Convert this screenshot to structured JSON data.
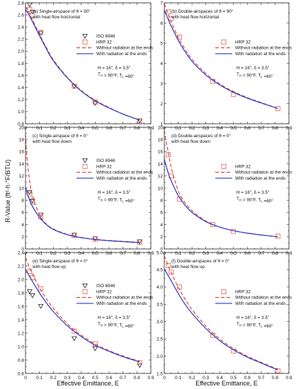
{
  "figure": {
    "y_axis_title": "R-Value (ft²·h·°F/BTU)",
    "x_axis_title": "Effective Emittance, E"
  },
  "colors": {
    "iso": "#222222",
    "hrp": "#e06050",
    "without_radiation": "#e03a2a",
    "with_radiation": "#2838c8"
  },
  "chart_data": [
    {
      "type": "line",
      "panel": "a",
      "annotation": [
        "(a) Single-airspace of θ = 90°",
        "with heat flow horizontal"
      ],
      "conditions": [
        "H = 16\", δ = 3.5\"",
        "T_H = 90°F, T_L =60°"
      ],
      "xlim": [
        0,
        0.9
      ],
      "ylim": [
        0.8,
        2.8
      ],
      "xticks": [
        "0",
        "0.1",
        "0.2",
        "0.3",
        "0.4",
        "0.5",
        "0.6",
        "0.7",
        "0.8",
        "0.9"
      ],
      "yticks": [
        "0.8",
        "1.0",
        "1.2",
        "1.4",
        "1.6",
        "1.8",
        "2.0",
        "2.2",
        "2.4",
        "2.6",
        "2.8"
      ],
      "legend": [
        "ISO 6946",
        "HRP 32",
        "Without radiation at the ends",
        "With radiation at the ends"
      ],
      "series": [
        {
          "name": "ISO 6946",
          "marker": "triangle",
          "x": [
            0.03,
            0.05,
            0.11,
            0.35,
            0.5,
            0.82
          ],
          "y": [
            2.77,
            2.65,
            2.3,
            1.42,
            1.14,
            0.85
          ]
        },
        {
          "name": "HRP 32",
          "marker": "square",
          "x": [
            0.03,
            0.05,
            0.11,
            0.35,
            0.5,
            0.82
          ],
          "y": [
            2.69,
            2.59,
            2.31,
            1.42,
            1.16,
            0.85
          ]
        },
        {
          "name": "Without radiation at the ends",
          "style": "dashed",
          "x": [
            0.0,
            0.03,
            0.05,
            0.1,
            0.15,
            0.2,
            0.3,
            0.4,
            0.5,
            0.6,
            0.7,
            0.82
          ],
          "y": [
            2.74,
            2.62,
            2.52,
            2.28,
            2.06,
            1.86,
            1.57,
            1.35,
            1.19,
            1.07,
            0.96,
            0.86
          ]
        },
        {
          "name": "With radiation at the ends",
          "style": "solid",
          "x": [
            0.0,
            0.03,
            0.05,
            0.1,
            0.15,
            0.2,
            0.3,
            0.4,
            0.5,
            0.6,
            0.7,
            0.82
          ],
          "y": [
            2.69,
            2.58,
            2.49,
            2.26,
            2.04,
            1.84,
            1.56,
            1.34,
            1.18,
            1.06,
            0.96,
            0.86
          ]
        }
      ]
    },
    {
      "type": "line",
      "panel": "b",
      "annotation": [
        "(b) Double-airspaces of θ = 90°",
        "with heat flow horizontal"
      ],
      "conditions": [
        "H = 16\", δ = 3.5\"",
        "T_H = 90°F, T_L =60°"
      ],
      "xlim": [
        0,
        0.9
      ],
      "ylim": [
        1,
        7
      ],
      "xticks": [
        "0",
        "0.1",
        "0.2",
        "0.3",
        "0.4",
        "0.5",
        "0.6",
        "0.7",
        "0.8",
        "0.9"
      ],
      "yticks": [
        "1",
        "2",
        "3",
        "4",
        "5",
        "6",
        "7"
      ],
      "legend": [
        "HRP 32",
        "Without radiation at the ends",
        "With radiation at the ends"
      ],
      "series": [
        {
          "name": "HRP 32",
          "marker": "square",
          "x": [
            0.03,
            0.05,
            0.11,
            0.35,
            0.5,
            0.82
          ],
          "y": [
            6.55,
            6.22,
            5.3,
            3.1,
            2.45,
            1.75
          ]
        },
        {
          "name": "Without radiation at the ends",
          "style": "dashed",
          "x": [
            0.0,
            0.03,
            0.05,
            0.1,
            0.15,
            0.2,
            0.3,
            0.4,
            0.5,
            0.6,
            0.7,
            0.82
          ],
          "y": [
            6.95,
            6.4,
            6.05,
            5.3,
            4.7,
            4.2,
            3.5,
            2.98,
            2.6,
            2.3,
            2.05,
            1.76
          ]
        },
        {
          "name": "With radiation at the ends",
          "style": "solid",
          "x": [
            0.0,
            0.03,
            0.05,
            0.1,
            0.15,
            0.2,
            0.3,
            0.4,
            0.5,
            0.6,
            0.7,
            0.82
          ],
          "y": [
            6.65,
            6.15,
            5.85,
            5.15,
            4.58,
            4.1,
            3.42,
            2.93,
            2.56,
            2.27,
            2.03,
            1.76
          ]
        }
      ]
    },
    {
      "type": "line",
      "panel": "c",
      "annotation": [
        "(c) Single-airspace of θ = 0°",
        "with heat flow down"
      ],
      "conditions": [
        "H = 16\", δ = 3.5\"",
        "T_H = 90°F, T_L =60°"
      ],
      "xlim": [
        0,
        0.9
      ],
      "ylim": [
        0,
        20
      ],
      "xticks": [
        "0",
        "0.1",
        "0.2",
        "0.3",
        "0.4",
        "0.5",
        "0.6",
        "0.7",
        "0.8",
        "0.9"
      ],
      "yticks": [
        "0",
        "2",
        "4",
        "6",
        "8",
        "10",
        "12",
        "14",
        "16",
        "18",
        "20"
      ],
      "legend": [
        "ISO 6946",
        "HRP 32",
        "Without radiation at the ends",
        "With radiation at the ends"
      ],
      "series": [
        {
          "name": "ISO 6946",
          "marker": "triangle",
          "x": [
            0.03,
            0.05,
            0.11,
            0.35,
            0.5,
            0.82
          ],
          "y": [
            9.3,
            7.9,
            5.6,
            2.3,
            1.7,
            1.2
          ]
        },
        {
          "name": "HRP 32",
          "marker": "square",
          "x": [
            0.03,
            0.05,
            0.11,
            0.35,
            0.5,
            0.82
          ],
          "y": [
            9.0,
            7.7,
            5.3,
            2.2,
            1.6,
            1.1
          ]
        },
        {
          "name": "Without radiation at the ends",
          "style": "dashed",
          "x": [
            0.0,
            0.01,
            0.03,
            0.05,
            0.1,
            0.15,
            0.2,
            0.3,
            0.4,
            0.5,
            0.6,
            0.7,
            0.82
          ],
          "y": [
            18.8,
            15.2,
            11.2,
            8.8,
            5.6,
            4.1,
            3.3,
            2.4,
            1.9,
            1.6,
            1.4,
            1.25,
            1.1
          ]
        },
        {
          "name": "With radiation at the ends",
          "style": "solid",
          "x": [
            0.0,
            0.01,
            0.03,
            0.05,
            0.1,
            0.15,
            0.2,
            0.3,
            0.4,
            0.5,
            0.6,
            0.7,
            0.82
          ],
          "y": [
            10.2,
            9.3,
            8.0,
            7.0,
            5.2,
            4.0,
            3.2,
            2.35,
            1.85,
            1.55,
            1.35,
            1.2,
            1.05
          ]
        }
      ]
    },
    {
      "type": "line",
      "panel": "d",
      "annotation": [
        "(d) Double-airspaces of θ = 0°",
        "with heat flow down"
      ],
      "conditions": [
        "H = 16\", δ = 3.5\"",
        "T_H = 90°F, T_L =60°"
      ],
      "xlim": [
        0,
        0.9
      ],
      "ylim": [
        0,
        20
      ],
      "xticks": [
        "0",
        "0.1",
        "0.2",
        "0.3",
        "0.4",
        "0.5",
        "0.6",
        "0.7",
        "0.8",
        "0.9"
      ],
      "yticks": [
        "0",
        "2",
        "4",
        "6",
        "8",
        "10",
        "12",
        "14",
        "16",
        "18",
        "20"
      ],
      "legend": [
        "HRP 32",
        "Without radiation at the ends",
        "With radiation at the ends"
      ],
      "series": [
        {
          "name": "HRP 32",
          "marker": "square",
          "x": [
            0.03,
            0.05,
            0.11,
            0.35,
            0.5,
            0.82
          ],
          "y": [
            15.5,
            12.0,
            8.2,
            4.0,
            2.9,
            2.1
          ]
        },
        {
          "name": "Without radiation at the ends",
          "style": "dashed",
          "x": [
            0.0,
            0.01,
            0.03,
            0.05,
            0.1,
            0.15,
            0.2,
            0.3,
            0.4,
            0.5,
            0.6,
            0.7,
            0.82
          ],
          "y": [
            19.5,
            18.0,
            15.8,
            13.4,
            9.6,
            7.6,
            6.3,
            4.6,
            3.6,
            3.0,
            2.6,
            2.3,
            2.0
          ]
        },
        {
          "name": "With radiation at the ends",
          "style": "solid",
          "x": [
            0.0,
            0.01,
            0.03,
            0.05,
            0.1,
            0.15,
            0.2,
            0.3,
            0.4,
            0.5,
            0.6,
            0.7,
            0.82
          ],
          "y": [
            14.8,
            13.9,
            12.4,
            11.2,
            8.8,
            7.2,
            6.0,
            4.5,
            3.6,
            3.0,
            2.6,
            2.3,
            2.0
          ]
        }
      ]
    },
    {
      "type": "line",
      "panel": "e",
      "annotation": [
        "(e) Single-airspace of θ = 0°",
        "with heat flow up"
      ],
      "conditions": [
        "H = 16\", δ = 3.5\"",
        "T_H = 90°F, T_L =60°"
      ],
      "xlim": [
        0,
        0.9
      ],
      "ylim": [
        0.6,
        2.4
      ],
      "xticks": [
        "0",
        "0.1",
        "0.2",
        "0.3",
        "0.4",
        "0.5",
        "0.6",
        "0.7",
        "0.8",
        "0.9"
      ],
      "yticks": [
        "0.6",
        "0.8",
        "1.0",
        "1.2",
        "1.4",
        "1.6",
        "1.8",
        "2.0",
        "2.2",
        "2.4"
      ],
      "legend": [
        "ISO 6946",
        "HRP 32",
        "Without radiation at the ends",
        "With radiation at the ends"
      ],
      "series": [
        {
          "name": "ISO 6946",
          "marker": "triangle",
          "x": [
            0.03,
            0.05,
            0.11,
            0.35,
            0.5,
            0.82
          ],
          "y": [
            1.82,
            1.76,
            1.6,
            1.12,
            0.97,
            0.72
          ]
        },
        {
          "name": "HRP 32",
          "marker": "square",
          "x": [
            0.03,
            0.05,
            0.11,
            0.35,
            0.5,
            0.82
          ],
          "y": [
            2.12,
            2.03,
            1.86,
            1.23,
            1.04,
            0.76
          ]
        },
        {
          "name": "Without radiation at the ends",
          "style": "dashed",
          "x": [
            0.0,
            0.03,
            0.05,
            0.1,
            0.15,
            0.2,
            0.3,
            0.4,
            0.5,
            0.6,
            0.7,
            0.82
          ],
          "y": [
            2.32,
            2.17,
            2.08,
            1.88,
            1.71,
            1.57,
            1.34,
            1.17,
            1.04,
            0.94,
            0.86,
            0.78
          ]
        },
        {
          "name": "With radiation at the ends",
          "style": "solid",
          "x": [
            0.0,
            0.03,
            0.05,
            0.1,
            0.15,
            0.2,
            0.3,
            0.4,
            0.5,
            0.6,
            0.7,
            0.82
          ],
          "y": [
            2.15,
            2.04,
            1.97,
            1.8,
            1.65,
            1.52,
            1.31,
            1.15,
            1.02,
            0.93,
            0.85,
            0.77
          ]
        }
      ]
    },
    {
      "type": "line",
      "panel": "f",
      "annotation": [
        "(f) Double-airspaces of θ = 0°",
        "with heat flow up"
      ],
      "conditions": [
        "H = 16\", δ = 3.5\"",
        "T_H = 90°F, T_L =60°"
      ],
      "xlim": [
        0,
        0.9
      ],
      "ylim": [
        1.5,
        5.0
      ],
      "xticks": [
        "0",
        "0.1",
        "0.2",
        "0.3",
        "0.4",
        "0.5",
        "0.6",
        "0.7",
        "0.8",
        "0.9"
      ],
      "yticks": [
        "1.5",
        "2.0",
        "2.5",
        "3.0",
        "3.5",
        "4.0",
        "4.5",
        "5.0"
      ],
      "legend": [
        "HRP 32",
        "Without radiation at the ends",
        "With radiation at the ends"
      ],
      "series": [
        {
          "name": "HRP 32",
          "marker": "square",
          "x": [
            0.03,
            0.05,
            0.11,
            0.35,
            0.5,
            0.82
          ],
          "y": [
            4.62,
            4.43,
            4.0,
            2.6,
            2.15,
            1.58
          ]
        },
        {
          "name": "Without radiation at the ends",
          "style": "dashed",
          "x": [
            0.0,
            0.03,
            0.05,
            0.1,
            0.15,
            0.2,
            0.3,
            0.4,
            0.5,
            0.6,
            0.7,
            0.82
          ],
          "y": [
            4.9,
            4.6,
            4.42,
            4.0,
            3.65,
            3.35,
            2.87,
            2.5,
            2.22,
            2.0,
            1.82,
            1.62
          ]
        },
        {
          "name": "With radiation at the ends",
          "style": "solid",
          "x": [
            0.0,
            0.03,
            0.05,
            0.1,
            0.15,
            0.2,
            0.3,
            0.4,
            0.5,
            0.6,
            0.7,
            0.82
          ],
          "y": [
            4.52,
            4.32,
            4.18,
            3.82,
            3.5,
            3.24,
            2.8,
            2.45,
            2.18,
            1.97,
            1.8,
            1.6
          ]
        }
      ]
    }
  ]
}
